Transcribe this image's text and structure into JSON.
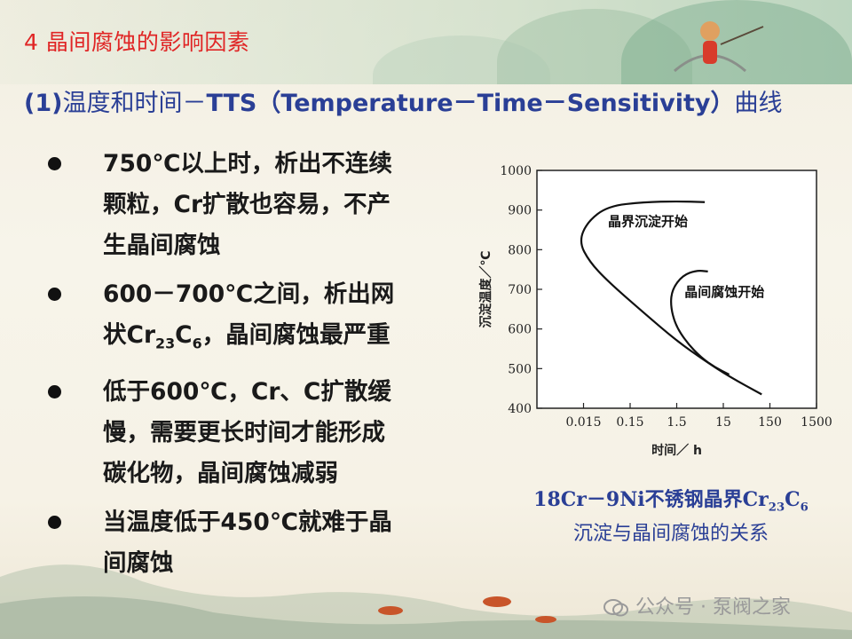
{
  "slide": {
    "title": "4 晶间腐蚀的影响因素",
    "subtitle_bold1": "(1)",
    "subtitle_thin": "温度和时间－",
    "subtitle_bold2": "TTS（Temperature－Time－Sensitivity）",
    "subtitle_tail": "曲线",
    "bullets": [
      {
        "lines": [
          "750℃以上时，析出不连续",
          "颗粒，Cr扩散也容易，不产",
          "生晶间腐蚀"
        ]
      },
      {
        "lines": [
          "600－700℃之间，析出网",
          "状Cr23C6，晶间腐蚀最严重"
        ]
      },
      {
        "lines": [
          "低于600℃，Cr、C扩散缓",
          "慢，需要更长时间才能形成",
          "碳化物，晶间腐蚀减弱"
        ]
      },
      {
        "lines": [
          "当温度低于450℃就难于晶",
          "间腐蚀"
        ]
      }
    ],
    "caption_line1": "18Cr－9Ni不锈钢晶界Cr23C6",
    "caption_line2": "沉淀与晶间腐蚀的关系",
    "watermark": "公众号 · 泵阀之家"
  },
  "chart_data": {
    "type": "line",
    "x_scale": "log",
    "xlabel": "时间／ h",
    "ylabel": "沉淀温度／℃",
    "x_tick_labels": [
      "0.015",
      "0.15",
      "1.5",
      "15",
      "150",
      "1500"
    ],
    "y_tick_labels": [
      "400",
      "500",
      "600",
      "700",
      "800",
      "900",
      "1000"
    ],
    "xlim": [
      0.0015,
      1500
    ],
    "ylim": [
      400,
      1000
    ],
    "series": [
      {
        "name": "晶界沉淀开始",
        "x": [
          6,
          1.5,
          0.3,
          0.05,
          0.018,
          0.012,
          0.02,
          0.05,
          0.3,
          1.5,
          6,
          20,
          100
        ],
        "y": [
          920,
          922,
          920,
          910,
          870,
          820,
          770,
          720,
          640,
          570,
          520,
          480,
          435
        ]
      },
      {
        "name": "晶间腐蚀开始",
        "x": [
          7,
          4,
          2,
          1.2,
          1.1,
          1.4,
          2.5,
          5,
          10,
          20
        ],
        "y": [
          745,
          748,
          735,
          700,
          660,
          610,
          565,
          528,
          503,
          485
        ]
      }
    ]
  }
}
